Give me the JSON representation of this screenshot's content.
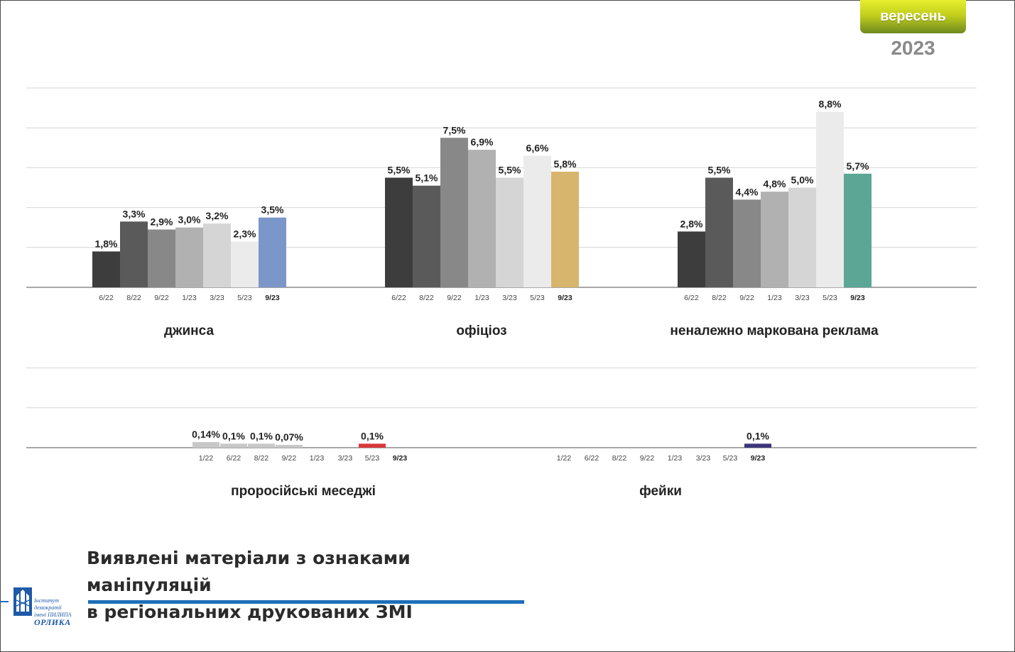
{
  "badge": {
    "month": "вересень",
    "year": "2023"
  },
  "title": {
    "line1": "Виявлені матеріали з ознаками маніпуляцій",
    "line2": "в регіональних друкованих ЗМІ"
  },
  "logo": {
    "line1": "Інститут демократії",
    "line2": "імені ПИЛИПА",
    "line3": "ОРЛИКА"
  },
  "colors": {
    "greys": [
      "#3d3d3d",
      "#5a5a5a",
      "#888888",
      "#b1b1b1",
      "#d5d5d5",
      "#ebebeb"
    ],
    "dzhynsa": "#7b96c9",
    "ofitsioz": "#d7b56c",
    "reklama": "#5ba695",
    "prorosiiski": "#d9383a",
    "feiky": "#3b3579",
    "small_grey": "#c8c8c8"
  },
  "chart_data": [
    {
      "type": "bar",
      "title": "джинса",
      "categories": [
        "6/22",
        "8/22",
        "9/22",
        "1/23",
        "3/23",
        "5/23",
        "9/23"
      ],
      "values": [
        1.8,
        3.3,
        2.9,
        3.0,
        3.2,
        2.3,
        3.5
      ],
      "labels": [
        "1,8%",
        "3,3%",
        "2,9%",
        "3,0%",
        "3,2%",
        "2,3%",
        "3,5%"
      ],
      "highlight": "9/23",
      "ylim": [
        0,
        10
      ],
      "grid": true
    },
    {
      "type": "bar",
      "title": "офіціоз",
      "categories": [
        "6/22",
        "8/22",
        "9/22",
        "1/23",
        "3/23",
        "5/23",
        "9/23"
      ],
      "values": [
        5.5,
        5.1,
        7.5,
        6.9,
        5.5,
        6.6,
        5.8
      ],
      "labels": [
        "5,5%",
        "5,1%",
        "7,5%",
        "6,9%",
        "5,5%",
        "6,6%",
        "5,8%"
      ],
      "highlight": "9/23",
      "ylim": [
        0,
        10
      ],
      "grid": true
    },
    {
      "type": "bar",
      "title": "неналежно маркована реклама",
      "categories": [
        "6/22",
        "8/22",
        "9/22",
        "1/23",
        "3/23",
        "5/23",
        "9/23"
      ],
      "values": [
        2.8,
        5.5,
        4.4,
        4.8,
        5.0,
        8.8,
        5.7
      ],
      "labels": [
        "2,8%",
        "5,5%",
        "4,4%",
        "4,8%",
        "5,0%",
        "8,8%",
        "5,7%"
      ],
      "highlight": "9/23",
      "ylim": [
        0,
        10
      ],
      "grid": true
    },
    {
      "type": "bar",
      "title": "проросійські меседжі",
      "categories": [
        "1/22",
        "6/22",
        "8/22",
        "9/22",
        "1/23",
        "3/23",
        "5/23",
        "9/23"
      ],
      "values": [
        0.14,
        0.1,
        0.1,
        0.07,
        0,
        0,
        0.1,
        null
      ],
      "labels": [
        "0,14%",
        "0,1%",
        "0,1%",
        "0,07%",
        "",
        "",
        "0,1%",
        ""
      ],
      "highlight": "5/23",
      "ylim": [
        0,
        3
      ],
      "grid": true
    },
    {
      "type": "bar",
      "title": "фейки",
      "categories": [
        "1/22",
        "6/22",
        "8/22",
        "9/22",
        "1/23",
        "3/23",
        "5/23",
        "9/23"
      ],
      "values": [
        0,
        0,
        0,
        0,
        0,
        0,
        0,
        0.1
      ],
      "labels": [
        "",
        "",
        "",
        "",
        "",
        "",
        "",
        "0,1%"
      ],
      "highlight": "9/23",
      "ylim": [
        0,
        3
      ],
      "grid": true
    }
  ]
}
